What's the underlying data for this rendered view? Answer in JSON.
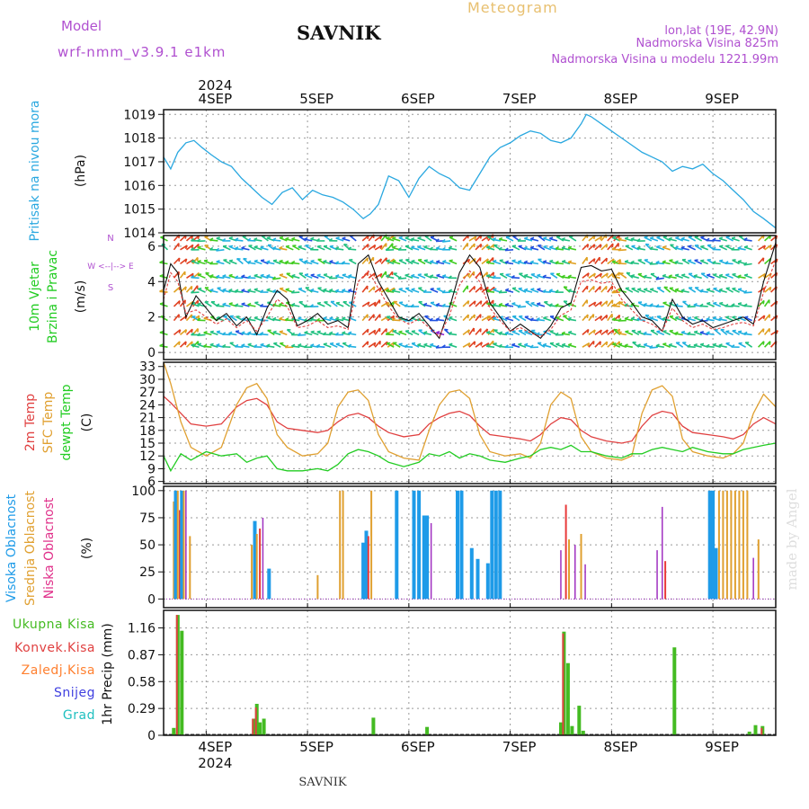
{
  "header": {
    "meteogram_label": "Meteogram",
    "station": "SAVNIK",
    "model_label": "Model",
    "model_name": "wrf-nmm_v3.9.1 e1km",
    "lonlat": "lon,lat (19E, 42.9N)",
    "elevation": "Nadmorska Visina 825m",
    "model_elevation": "Nadmorska Visina u modelu 1221.99m",
    "credit": "made by Angel",
    "footer_station": "SAVNIK",
    "year": "2024"
  },
  "colors": {
    "pressure": "#2aa8e0",
    "temp2m": "#e04040",
    "sfc_temp": "#e0a030",
    "dewpoint": "#22cc22",
    "high_cloud": "#1e9be8",
    "mid_cloud": "#e0a030",
    "low_cloud": "#e83a3a",
    "cloud_other": "#a030c0",
    "total_precip": "#44bb22",
    "conv_precip": "#e04040",
    "frozen_precip": "#ff8030",
    "snow": "#4040e0",
    "grad": "#20c0c0",
    "model_text": "#b050d0",
    "title_text": "#e8c070"
  },
  "chart_data": [
    {
      "id": "pressure",
      "type": "line",
      "ylabel_lines": [
        "Pritisak na nivou mora",
        "(hPa)"
      ],
      "x_ticks": [
        "4SEP",
        "5SEP",
        "6SEP",
        "7SEP",
        "8SEP",
        "9SEP"
      ],
      "ylim": [
        1014,
        1019.2
      ],
      "yticks": [
        1014,
        1015,
        1016,
        1017,
        1018,
        1019
      ],
      "grid": true,
      "x_start_day": 3.58,
      "x_end_day": 9.62,
      "x_days": [
        3.58,
        3.65,
        3.72,
        3.8,
        3.88,
        3.96,
        4.05,
        4.15,
        4.25,
        4.35,
        4.45,
        4.55,
        4.65,
        4.75,
        4.85,
        4.95,
        5.05,
        5.15,
        5.25,
        5.35,
        5.45,
        5.55,
        5.62,
        5.7,
        5.8,
        5.9,
        6.0,
        6.1,
        6.2,
        6.3,
        6.4,
        6.5,
        6.6,
        6.7,
        6.8,
        6.9,
        7.0,
        7.1,
        7.2,
        7.3,
        7.4,
        7.5,
        7.6,
        7.7,
        7.75,
        7.8,
        7.9,
        8.0,
        8.1,
        8.2,
        8.3,
        8.4,
        8.5,
        8.6,
        8.7,
        8.8,
        8.9,
        9.0,
        9.1,
        9.2,
        9.3,
        9.4,
        9.5,
        9.62
      ],
      "values": [
        1017.2,
        1016.7,
        1017.4,
        1017.8,
        1017.9,
        1017.6,
        1017.3,
        1017.0,
        1016.8,
        1016.3,
        1015.9,
        1015.5,
        1015.2,
        1015.7,
        1015.9,
        1015.4,
        1015.8,
        1015.6,
        1015.5,
        1015.3,
        1015.0,
        1014.6,
        1014.8,
        1015.2,
        1016.4,
        1016.2,
        1015.5,
        1016.3,
        1016.8,
        1016.5,
        1016.3,
        1015.9,
        1015.8,
        1016.5,
        1017.2,
        1017.6,
        1017.8,
        1018.1,
        1018.3,
        1018.2,
        1017.9,
        1017.8,
        1018.0,
        1018.6,
        1019.0,
        1018.9,
        1018.6,
        1018.3,
        1018.0,
        1017.7,
        1017.4,
        1017.2,
        1017.0,
        1016.6,
        1016.8,
        1016.7,
        1016.9,
        1016.5,
        1016.2,
        1015.8,
        1015.4,
        1014.9,
        1014.6,
        1014.2
      ]
    },
    {
      "id": "wind",
      "type": "line",
      "ylabel_lines": [
        "10m Vjetar",
        "Brzina i Pravac",
        "(m/s)"
      ],
      "compass_lines": [
        "N",
        "W <--|--> E",
        "S"
      ],
      "ylim": [
        -0.4,
        6.6
      ],
      "yticks": [
        0,
        2,
        4,
        6
      ],
      "grid": true,
      "x_days": [
        3.58,
        3.65,
        3.72,
        3.8,
        3.9,
        4.0,
        4.1,
        4.2,
        4.3,
        4.4,
        4.5,
        4.6,
        4.7,
        4.8,
        4.9,
        5.0,
        5.1,
        5.2,
        5.3,
        5.4,
        5.5,
        5.6,
        5.7,
        5.8,
        5.9,
        6.0,
        6.1,
        6.2,
        6.3,
        6.4,
        6.5,
        6.6,
        6.7,
        6.8,
        6.9,
        7.0,
        7.1,
        7.2,
        7.3,
        7.4,
        7.5,
        7.6,
        7.7,
        7.8,
        7.9,
        8.0,
        8.1,
        8.2,
        8.3,
        8.4,
        8.5,
        8.6,
        8.7,
        8.8,
        8.9,
        9.0,
        9.1,
        9.2,
        9.3,
        9.4,
        9.5,
        9.62
      ],
      "speed": [
        3.5,
        5.0,
        4.5,
        2.0,
        3.2,
        2.5,
        1.8,
        2.2,
        1.5,
        2.0,
        1.0,
        2.5,
        3.5,
        3.0,
        1.5,
        1.8,
        2.2,
        1.6,
        1.8,
        1.4,
        5.0,
        5.5,
        4.0,
        3.0,
        2.0,
        1.8,
        2.2,
        1.5,
        0.8,
        2.5,
        4.5,
        5.5,
        4.8,
        2.8,
        2.0,
        1.2,
        1.6,
        1.2,
        0.8,
        1.5,
        2.5,
        2.8,
        4.8,
        4.9,
        4.6,
        4.7,
        3.5,
        2.8,
        2.0,
        1.8,
        1.2,
        3.0,
        2.0,
        1.6,
        1.8,
        1.4,
        1.6,
        1.8,
        2.0,
        1.6,
        4.0,
        6.2
      ],
      "gust": [
        3.0,
        4.5,
        4.0,
        2.2,
        2.4,
        2.0,
        1.6,
        1.9,
        1.4,
        1.8,
        1.2,
        2.0,
        3.0,
        2.6,
        1.4,
        1.5,
        1.8,
        1.4,
        1.5,
        1.3,
        4.0,
        4.6,
        3.6,
        2.6,
        1.9,
        1.6,
        1.9,
        1.4,
        0.9,
        2.1,
        3.8,
        4.6,
        4.0,
        2.5,
        1.8,
        1.2,
        1.4,
        1.1,
        0.9,
        1.3,
        2.1,
        2.4,
        4.0,
        4.1,
        3.9,
        4.0,
        3.0,
        2.4,
        1.8,
        1.6,
        1.2,
        2.5,
        1.8,
        1.4,
        1.6,
        1.3,
        1.4,
        1.6,
        1.7,
        1.5,
        3.4,
        5.2
      ]
    },
    {
      "id": "temperature",
      "type": "line",
      "ylabel_lines": [
        "2m Temp",
        "SFC Temp",
        "dewpt Temp",
        "(C)"
      ],
      "ylim": [
        5.5,
        34
      ],
      "yticks": [
        6,
        9,
        12,
        15,
        18,
        21,
        24,
        27,
        30,
        33
      ],
      "grid": true,
      "x_days": [
        3.58,
        3.65,
        3.75,
        3.85,
        4.0,
        4.15,
        4.3,
        4.4,
        4.5,
        4.6,
        4.7,
        4.8,
        4.95,
        5.1,
        5.2,
        5.3,
        5.4,
        5.5,
        5.6,
        5.7,
        5.8,
        5.95,
        6.1,
        6.2,
        6.3,
        6.4,
        6.5,
        6.6,
        6.7,
        6.8,
        6.95,
        7.1,
        7.2,
        7.3,
        7.4,
        7.5,
        7.6,
        7.7,
        7.8,
        7.95,
        8.1,
        8.2,
        8.3,
        8.4,
        8.5,
        8.6,
        8.7,
        8.8,
        8.95,
        9.1,
        9.2,
        9.3,
        9.4,
        9.5,
        9.62
      ],
      "series": [
        {
          "key": "temp2m",
          "values": [
            26.0,
            24.5,
            22.0,
            19.5,
            19.0,
            19.5,
            23.5,
            25.0,
            25.5,
            24.0,
            20.0,
            18.5,
            18.0,
            17.5,
            18.0,
            20.0,
            21.5,
            22.0,
            21.0,
            19.0,
            17.5,
            16.5,
            17.0,
            19.5,
            21.0,
            22.0,
            22.5,
            21.5,
            19.0,
            17.0,
            16.5,
            16.0,
            15.5,
            17.0,
            19.5,
            21.0,
            20.5,
            18.0,
            16.5,
            15.5,
            15.0,
            15.5,
            19.0,
            21.5,
            22.5,
            22.0,
            19.0,
            17.5,
            17.0,
            16.5,
            16.0,
            17.0,
            19.5,
            21.0,
            19.5
          ]
        },
        {
          "key": "sfc_temp",
          "values": [
            34.0,
            29.0,
            20.0,
            14.0,
            12.0,
            14.0,
            24.0,
            28.0,
            29.0,
            25.5,
            17.0,
            14.0,
            12.0,
            12.5,
            15.0,
            23.5,
            27.0,
            27.5,
            25.0,
            17.0,
            13.0,
            11.5,
            11.0,
            18.0,
            24.0,
            27.0,
            27.5,
            25.5,
            17.0,
            13.0,
            12.0,
            12.5,
            11.5,
            15.0,
            24.0,
            27.0,
            25.5,
            16.5,
            13.0,
            11.5,
            11.0,
            12.0,
            22.0,
            27.5,
            28.5,
            26.0,
            16.0,
            13.0,
            12.0,
            11.5,
            12.5,
            15.0,
            22.0,
            26.5,
            23.5
          ]
        },
        {
          "key": "dewpoint",
          "values": [
            12.0,
            8.5,
            12.5,
            11.0,
            13.0,
            12.0,
            12.5,
            10.5,
            11.5,
            12.0,
            9.0,
            8.5,
            8.5,
            9.0,
            8.5,
            10.0,
            12.5,
            13.5,
            13.0,
            12.0,
            10.5,
            9.5,
            10.5,
            12.5,
            12.0,
            13.0,
            11.5,
            12.5,
            12.0,
            11.0,
            10.5,
            11.5,
            12.0,
            13.5,
            14.0,
            13.5,
            14.5,
            13.0,
            13.0,
            12.0,
            11.5,
            12.5,
            12.5,
            13.5,
            14.0,
            13.5,
            13.0,
            14.0,
            13.0,
            12.5,
            12.5,
            13.5,
            14.0,
            14.5,
            15.0
          ]
        }
      ]
    },
    {
      "id": "clouds",
      "type": "bar",
      "ylabel_lines": [
        "Visoka Oblacnost",
        "Srednja Oblacnost",
        "Niska Oblacnost",
        "(%)"
      ],
      "ylim": [
        0,
        100
      ],
      "yticks": [
        0,
        25,
        50,
        75,
        100
      ],
      "grid": true,
      "bars": [
        {
          "day": 3.68,
          "layer": "mid",
          "value": 90
        },
        {
          "day": 3.7,
          "layer": "high",
          "value": 100
        },
        {
          "day": 3.72,
          "layer": "mid",
          "value": 100
        },
        {
          "day": 3.74,
          "layer": "low",
          "value": 82
        },
        {
          "day": 3.76,
          "layer": "high",
          "value": 100
        },
        {
          "day": 3.78,
          "layer": "mid",
          "value": 100
        },
        {
          "day": 3.8,
          "layer": "other",
          "value": 100
        },
        {
          "day": 3.84,
          "layer": "mid",
          "value": 58
        },
        {
          "day": 4.45,
          "layer": "mid",
          "value": 50
        },
        {
          "day": 4.48,
          "layer": "high",
          "value": 72
        },
        {
          "day": 4.5,
          "layer": "mid",
          "value": 60
        },
        {
          "day": 4.53,
          "layer": "low",
          "value": 65
        },
        {
          "day": 4.56,
          "layer": "other",
          "value": 75
        },
        {
          "day": 4.62,
          "layer": "high",
          "value": 28
        },
        {
          "day": 5.1,
          "layer": "mid",
          "value": 22
        },
        {
          "day": 5.32,
          "layer": "mid",
          "value": 100
        },
        {
          "day": 5.35,
          "layer": "mid",
          "value": 100
        },
        {
          "day": 5.55,
          "layer": "high",
          "value": 52
        },
        {
          "day": 5.58,
          "layer": "high",
          "value": 63
        },
        {
          "day": 5.6,
          "layer": "low",
          "value": 58
        },
        {
          "day": 5.63,
          "layer": "mid",
          "value": 100
        },
        {
          "day": 5.88,
          "layer": "high",
          "value": 100
        },
        {
          "day": 6.05,
          "layer": "high",
          "value": 100
        },
        {
          "day": 6.1,
          "layer": "high",
          "value": 100
        },
        {
          "day": 6.15,
          "layer": "high",
          "value": 77
        },
        {
          "day": 6.18,
          "layer": "high",
          "value": 77
        },
        {
          "day": 6.22,
          "layer": "other",
          "value": 70
        },
        {
          "day": 6.48,
          "layer": "high",
          "value": 100
        },
        {
          "day": 6.52,
          "layer": "high",
          "value": 100
        },
        {
          "day": 6.62,
          "layer": "high",
          "value": 47
        },
        {
          "day": 6.68,
          "layer": "high",
          "value": 37
        },
        {
          "day": 6.78,
          "layer": "high",
          "value": 33
        },
        {
          "day": 6.82,
          "layer": "high",
          "value": 100
        },
        {
          "day": 6.86,
          "layer": "high",
          "value": 100
        },
        {
          "day": 6.9,
          "layer": "high",
          "value": 100
        },
        {
          "day": 7.5,
          "layer": "other",
          "value": 45
        },
        {
          "day": 7.55,
          "layer": "low",
          "value": 87
        },
        {
          "day": 7.58,
          "layer": "mid",
          "value": 55
        },
        {
          "day": 7.64,
          "layer": "other",
          "value": 50
        },
        {
          "day": 7.7,
          "layer": "mid",
          "value": 60
        },
        {
          "day": 7.74,
          "layer": "other",
          "value": 32
        },
        {
          "day": 8.45,
          "layer": "other",
          "value": 45
        },
        {
          "day": 8.5,
          "layer": "other",
          "value": 85
        },
        {
          "day": 8.53,
          "layer": "low",
          "value": 35
        },
        {
          "day": 8.97,
          "layer": "high",
          "value": 100
        },
        {
          "day": 9.0,
          "layer": "high",
          "value": 100
        },
        {
          "day": 9.03,
          "layer": "high",
          "value": 47
        },
        {
          "day": 9.06,
          "layer": "mid",
          "value": 100
        },
        {
          "day": 9.1,
          "layer": "mid",
          "value": 100
        },
        {
          "day": 9.14,
          "layer": "mid",
          "value": 100
        },
        {
          "day": 9.18,
          "layer": "mid",
          "value": 100
        },
        {
          "day": 9.22,
          "layer": "mid",
          "value": 100
        },
        {
          "day": 9.26,
          "layer": "mid",
          "value": 100
        },
        {
          "day": 9.3,
          "layer": "mid",
          "value": 100
        },
        {
          "day": 9.34,
          "layer": "mid",
          "value": 100
        },
        {
          "day": 9.4,
          "layer": "other",
          "value": 38
        },
        {
          "day": 9.45,
          "layer": "mid",
          "value": 55
        }
      ]
    },
    {
      "id": "precip",
      "type": "bar",
      "ylabel_lines": [
        "1hr Precip",
        "(mm)"
      ],
      "legend": [
        "Ukupna Kisa",
        "Konvek.Kisa",
        "Zaledj.Kisa",
        "Snijeg",
        "Grad"
      ],
      "x_ticks": [
        "4SEP",
        "5SEP",
        "6SEP",
        "7SEP",
        "8SEP",
        "9SEP"
      ],
      "ylim": [
        0,
        1.35
      ],
      "yticks": [
        0,
        0.29,
        0.58,
        0.87,
        1.16
      ],
      "grid": true,
      "bars": [
        {
          "day": 3.68,
          "total": 0.08,
          "conv": 0.0
        },
        {
          "day": 3.72,
          "total": 1.3,
          "conv": 1.3
        },
        {
          "day": 3.76,
          "total": 1.13,
          "conv": 0.0
        },
        {
          "day": 4.47,
          "total": 0.18,
          "conv": 0.18
        },
        {
          "day": 4.5,
          "total": 0.34,
          "conv": 0.3
        },
        {
          "day": 4.53,
          "total": 0.14,
          "conv": 0.0
        },
        {
          "day": 4.57,
          "total": 0.18,
          "conv": 0.0
        },
        {
          "day": 5.65,
          "total": 0.19,
          "conv": 0.0
        },
        {
          "day": 6.18,
          "total": 0.09,
          "conv": 0.0
        },
        {
          "day": 7.5,
          "total": 0.14,
          "conv": 0.0
        },
        {
          "day": 7.53,
          "total": 1.12,
          "conv": 1.1
        },
        {
          "day": 7.57,
          "total": 0.78,
          "conv": 0.0
        },
        {
          "day": 7.61,
          "total": 0.1,
          "conv": 0.0
        },
        {
          "day": 7.68,
          "total": 0.32,
          "conv": 0.0
        },
        {
          "day": 7.72,
          "total": 0.05,
          "conv": 0.0
        },
        {
          "day": 8.62,
          "total": 0.95,
          "conv": 0.0
        },
        {
          "day": 9.36,
          "total": 0.04,
          "conv": 0.0
        },
        {
          "day": 9.42,
          "total": 0.11,
          "conv": 0.0
        },
        {
          "day": 9.49,
          "total": 0.1,
          "conv": 0.08
        }
      ]
    }
  ]
}
